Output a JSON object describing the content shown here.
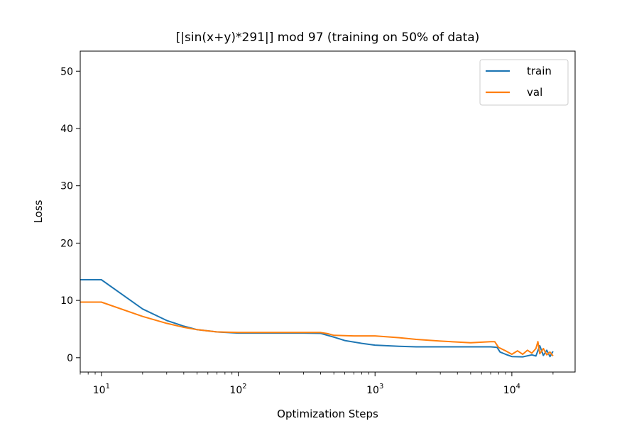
{
  "chart_data": {
    "type": "line",
    "title": "[|sin(x+y)*291|] mod 97 (training on 50% of data)",
    "xlabel": "Optimization Steps",
    "ylabel": "Loss",
    "xscale": "log",
    "xlim": [
      7,
      29000
    ],
    "ylim": [
      -2.5,
      53.5
    ],
    "grid": false,
    "legend_position": "upper right",
    "x_ticks": [
      {
        "value": 10,
        "base": "10",
        "exp": "1"
      },
      {
        "value": 100,
        "base": "10",
        "exp": "2"
      },
      {
        "value": 1000,
        "base": "10",
        "exp": "3"
      },
      {
        "value": 10000,
        "base": "10",
        "exp": "4"
      }
    ],
    "y_ticks": [
      {
        "value": 0,
        "label": "0"
      },
      {
        "value": 10,
        "label": "10"
      },
      {
        "value": 20,
        "label": "20"
      },
      {
        "value": 30,
        "label": "30"
      },
      {
        "value": 40,
        "label": "40"
      },
      {
        "value": 50,
        "label": "50"
      }
    ],
    "series": [
      {
        "name": "train",
        "color": "#1f77b4",
        "x": [
          1,
          10,
          20,
          30,
          40,
          50,
          70,
          100,
          200,
          300,
          400,
          500,
          600,
          800,
          1000,
          1500,
          2000,
          3000,
          5000,
          7000,
          7800,
          8200,
          9000,
          10000,
          12000,
          14000,
          15000,
          16000,
          17000,
          18000,
          19000,
          20000
        ],
        "y": [
          13.6,
          13.6,
          8.5,
          6.5,
          5.5,
          4.9,
          4.5,
          4.3,
          4.3,
          4.3,
          4.25,
          3.6,
          3.0,
          2.5,
          2.2,
          2.0,
          1.9,
          1.9,
          1.9,
          1.9,
          1.8,
          1.0,
          0.6,
          0.2,
          0.15,
          0.5,
          0.3,
          2.1,
          0.4,
          1.3,
          0.2,
          1.1
        ]
      },
      {
        "name": "val",
        "color": "#ff7f0e",
        "x": [
          1,
          10,
          20,
          30,
          40,
          50,
          70,
          100,
          200,
          300,
          400,
          450,
          500,
          700,
          1000,
          1500,
          2000,
          3000,
          5000,
          7000,
          7500,
          8000,
          9000,
          10000,
          11000,
          12000,
          13000,
          14000,
          15000,
          15500,
          16000,
          17000,
          18000,
          19000,
          20000
        ],
        "y": [
          9.7,
          9.7,
          7.2,
          6.0,
          5.3,
          4.9,
          4.5,
          4.4,
          4.4,
          4.4,
          4.4,
          4.2,
          3.9,
          3.8,
          3.8,
          3.5,
          3.2,
          2.9,
          2.6,
          2.8,
          2.8,
          1.8,
          1.2,
          0.6,
          1.2,
          0.6,
          1.3,
          0.8,
          1.6,
          2.8,
          0.7,
          1.6,
          0.5,
          1.0,
          0.3
        ]
      }
    ]
  }
}
